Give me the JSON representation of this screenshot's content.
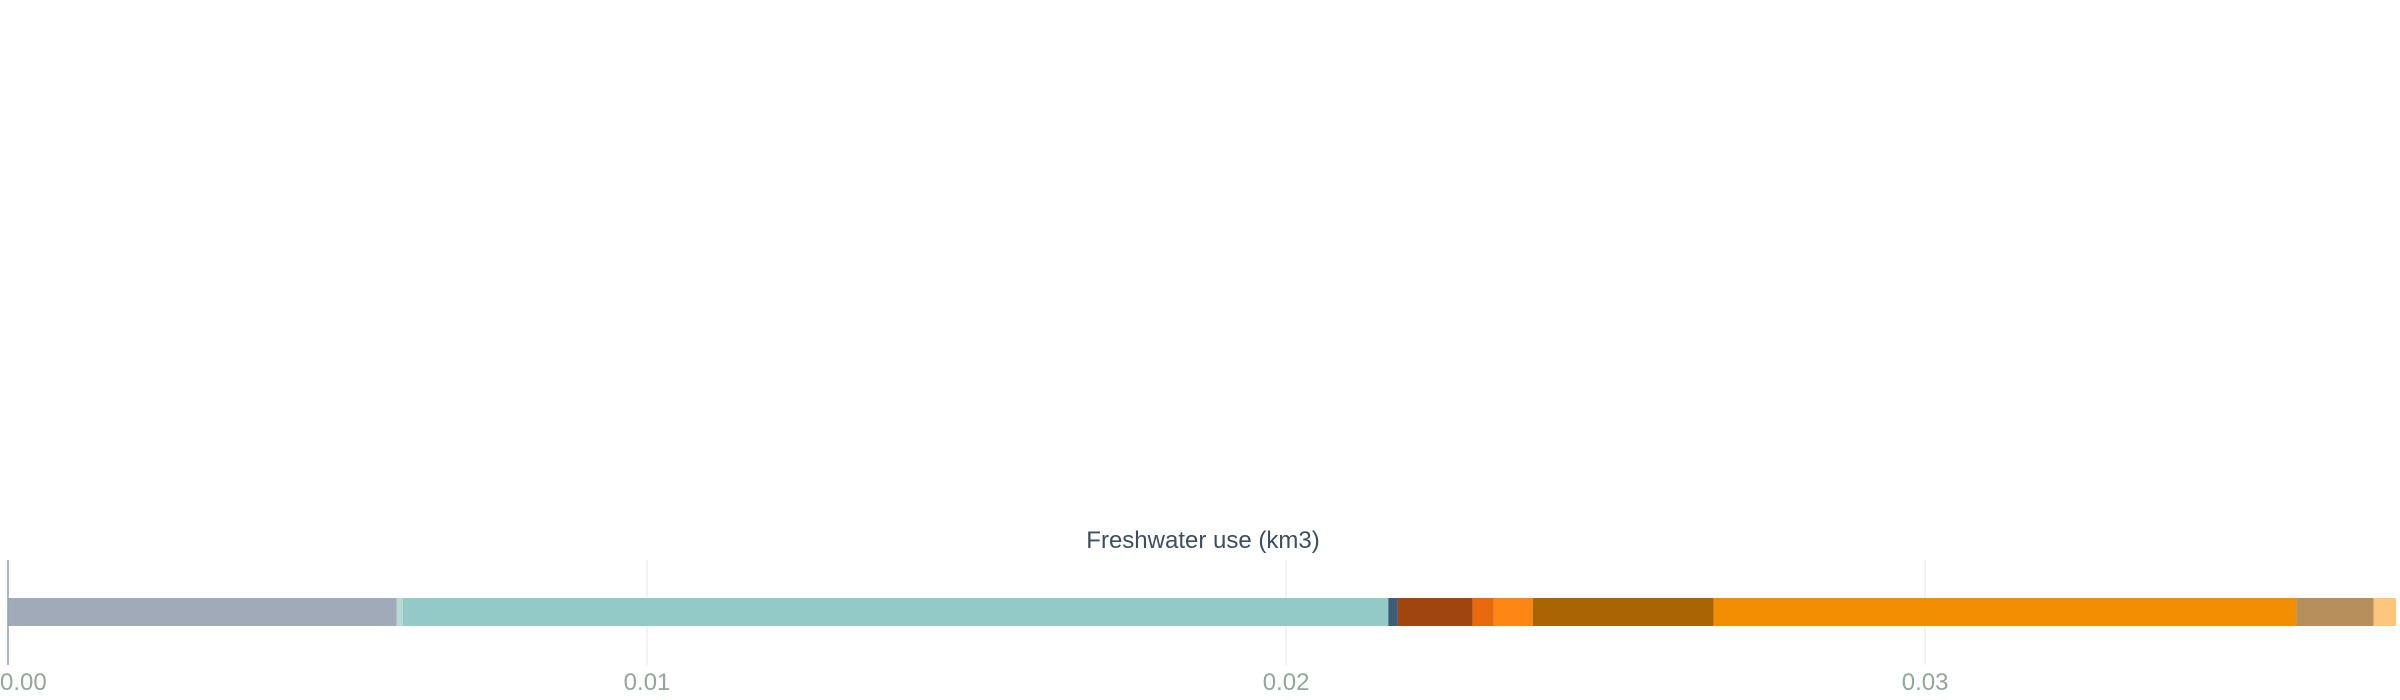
{
  "chart_data": {
    "type": "bar",
    "orientation": "horizontal-stacked",
    "title": "Freshwater use (km3)",
    "xlabel": "",
    "ylabel": "",
    "xlim": [
      0,
      0.0374
    ],
    "x_ticks": [
      0,
      0.01,
      0.02,
      0.03
    ],
    "x_tick_labels": [
      "0.00",
      "0.01",
      "0.02",
      "0.03"
    ],
    "grid": true,
    "legend": "none",
    "segments": [
      {
        "value": 0.00608,
        "color": "#a0aab8"
      },
      {
        "value": 0.0001,
        "color": "#b8d8d2"
      },
      {
        "value": 0.01542,
        "color": "#93c9c7"
      },
      {
        "value": 0.00015,
        "color": "#3e5c78"
      },
      {
        "value": 0.00117,
        "color": "#a1450e"
      },
      {
        "value": 0.00033,
        "color": "#e8680e"
      },
      {
        "value": 0.00061,
        "color": "#fd8614"
      },
      {
        "value": 0.00283,
        "color": "#a96504"
      },
      {
        "value": 0.00912,
        "color": "#f28e02"
      },
      {
        "value": 0.00121,
        "color": "#b68f5c"
      },
      {
        "value": 0.00035,
        "color": "#fec67d"
      }
    ],
    "colors": {
      "axis": "#8aa4b4",
      "grid": "#eef0f2"
    }
  }
}
